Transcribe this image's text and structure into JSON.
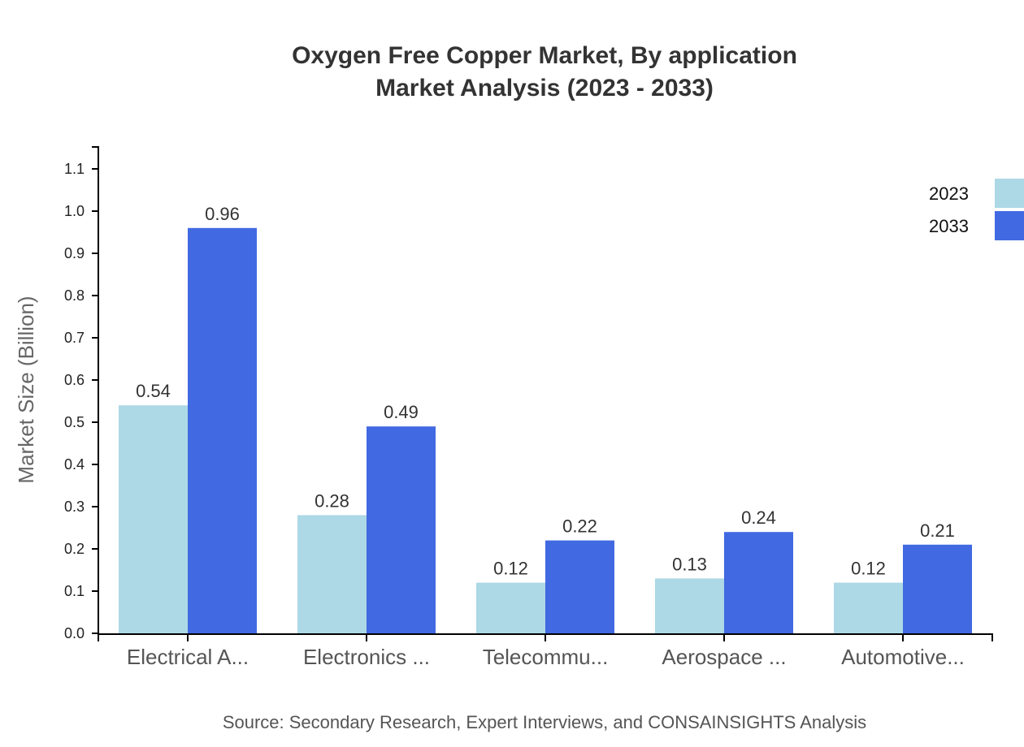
{
  "header": {
    "title_line1": "Oxygen Free Copper Market, By application",
    "title_line2": "Market Analysis (2023 - 2033)"
  },
  "footer": {
    "source": "Source: Secondary Research, Expert Interviews, and CONSAINSIGHTS Analysis"
  },
  "colors": {
    "series_2023": "#add8e6",
    "series_2033": "#4169e1",
    "axis": "#000000",
    "value_label": "#333333",
    "category_label": "#555555"
  },
  "chart_data": {
    "type": "bar",
    "title": "Oxygen Free Copper Market, By application\nMarket Analysis (2023 - 2033)",
    "xlabel": "",
    "ylabel": "Market Size (Billion)",
    "ylim": [
      0,
      1.15
    ],
    "yticks": [
      "0.0",
      "0.1",
      "0.2",
      "0.3",
      "0.4",
      "0.5",
      "0.6",
      "0.7",
      "0.8",
      "0.9",
      "1.0",
      "1.1"
    ],
    "grid": false,
    "legend_position": "top-right",
    "categories": [
      "Electrical A...",
      "Electronics ...",
      "Telecommu...",
      "Aerospace ...",
      "Automotive..."
    ],
    "series": [
      {
        "name": "2023",
        "color": "#add8e6",
        "values": [
          0.54,
          0.28,
          0.12,
          0.13,
          0.12
        ]
      },
      {
        "name": "2033",
        "color": "#4169e1",
        "values": [
          0.96,
          0.49,
          0.22,
          0.24,
          0.21
        ]
      }
    ],
    "source": "Source: Secondary Research, Expert Interviews, and CONSAINSIGHTS Analysis"
  }
}
